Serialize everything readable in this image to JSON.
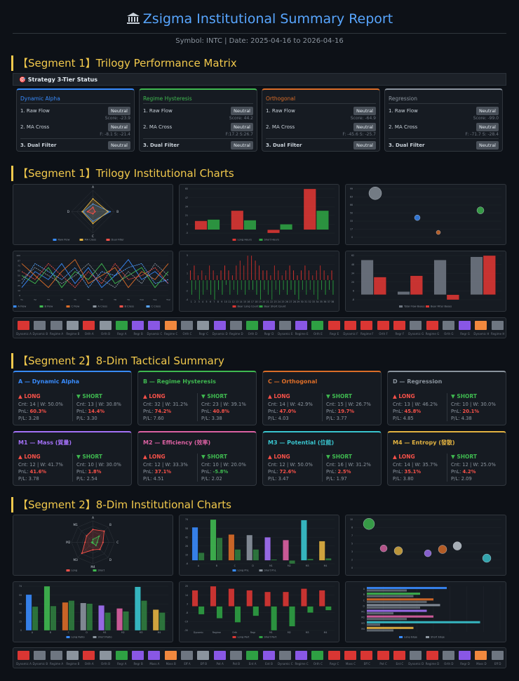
{
  "header": {
    "title": "Zsigma Institutional Summary Report",
    "subtitle": "Symbol: INTC | Date: 2025-04-16 to 2026-04-16"
  },
  "colors": {
    "dynamic": "#388bfd",
    "regime": "#3fb950",
    "orth": "#db6d28",
    "regr": "#8b949e",
    "m1": "#a371f7",
    "m2": "#db61a2",
    "m3": "#39c5cf",
    "m4": "#e3b341",
    "long": "#f85149",
    "short": "#3fb950",
    "accent": "#f2c94c"
  },
  "sections": {
    "s1": "【Segment 1】Trilogy Performance Matrix",
    "s2": "【Segment 1】Trilogy Institutional Charts",
    "s3": "【Segment 2】8-Dim Tactical Summary",
    "s4": "【Segment 2】8-Dim Institutional Charts"
  },
  "strategy_strip": "🎯 Strategy 3-Tier Status",
  "tiers": [
    {
      "name": "Dynamic Alpha",
      "r1": "1. Raw Flow",
      "b1": "Neutral",
      "s1": "Score: -23.9",
      "r2": "2. MA Cross",
      "b2": "Neutral",
      "s2": "F: -8.1 S: -21.4",
      "r3": "3. Dual Filter",
      "b3": "Neutral"
    },
    {
      "name": "Regime Hysteresis",
      "r1": "1. Raw Flow",
      "b1": "Neutral",
      "s1": "Score: 44.2",
      "r2": "2. MA Cross",
      "b2": "Neutral",
      "s2": "F:17.2 S:26.7",
      "r3": "3. Dual Filter",
      "b3": "Neutral"
    },
    {
      "name": "Orthogonal",
      "r1": "1. Raw Flow",
      "b1": "Neutral",
      "s1": "Score: -64.9",
      "r2": "2. MA Cross",
      "b2": "Neutral",
      "s2": "F: -45.6 S: -25.7",
      "r3": "3. Dual Filter",
      "b3": "Neutral"
    },
    {
      "name": "Regression",
      "r1": "1. Raw Flow",
      "b1": "Neutral",
      "s1": "Score: -99.0",
      "r2": "2. MA Cross",
      "b2": "Neutral",
      "s2": "F: -71.7 S: -28.4",
      "r3": "3. Dual Filter",
      "b3": "Neutral"
    }
  ],
  "dims": [
    {
      "name": "A — Dynamic Alpha",
      "lh": "▲ LONG",
      "l1": "Cnt: 14 | W: 50.0%",
      "lp": "PnL: ",
      "lv": "60.3%",
      "lr": "P/L: 3.28",
      "sh": "▼ SHORT",
      "s1": "Cnt: 13 | W: 30.8%",
      "sp": "PnL: ",
      "sv": "14.4%",
      "sr": "P/L: 3.30"
    },
    {
      "name": "B — Regime Hysteresis",
      "lh": "▲ LONG",
      "l1": "Cnt: 32 | W: 31.2%",
      "lp": "PnL: ",
      "lv": "74.2%",
      "lr": "P/L: 7.60",
      "sh": "▼ SHORT",
      "s1": "Cnt: 23 | W: 39.1%",
      "sp": "PnL: ",
      "sv": "40.8%",
      "sr": "P/L: 3.38"
    },
    {
      "name": "C — Orthogonal",
      "lh": "▲ LONG",
      "l1": "Cnt: 14 | W: 42.9%",
      "lp": "PnL: ",
      "lv": "47.0%",
      "lr": "P/L: 4.03",
      "sh": "▼ SHORT",
      "s1": "Cnt: 15 | W: 26.7%",
      "sp": "PnL: ",
      "sv": "19.7%",
      "sr": "P/L: 3.77"
    },
    {
      "name": "D — Regression",
      "lh": "▲ LONG",
      "l1": "Cnt: 13 | W: 46.2%",
      "lp": "PnL: ",
      "lv": "45.8%",
      "lr": "P/L: 4.85",
      "sh": "▼ SHORT",
      "s1": "Cnt: 10 | W: 30.0%",
      "sp": "PnL: ",
      "sv": "20.1%",
      "sr": "P/L: 4.38"
    },
    {
      "name": "M1 — Mass (質量)",
      "lh": "▲ LONG",
      "l1": "Cnt: 12 | W: 41.7%",
      "lp": "PnL: ",
      "lv": "41.6%",
      "lr": "P/L: 3.78",
      "sh": "▼ SHORT",
      "s1": "Cnt: 10 | W: 30.0%",
      "sp": "PnL: ",
      "sv": "1.8%",
      "sr": "P/L: 2.54"
    },
    {
      "name": "M2 — Efficiency (效率)",
      "lh": "▲ LONG",
      "l1": "Cnt: 12 | W: 33.3%",
      "lp": "PnL: ",
      "lv": "37.1%",
      "lr": "P/L: 4.51",
      "sh": "▼ SHORT",
      "s1": "Cnt: 10 | W: 20.0%",
      "sp": "PnL: ",
      "sv": "-5.8%",
      "sr": "P/L: 2.02"
    },
    {
      "name": "M3 — Potential (位能)",
      "lh": "▲ LONG",
      "l1": "Cnt: 12 | W: 50.0%",
      "lp": "PnL: ",
      "lv": "72.6%",
      "lr": "P/L: 3.47",
      "sh": "▼ SHORT",
      "s1": "Cnt: 16 | W: 31.2%",
      "sp": "PnL: ",
      "sv": "2.5%",
      "sr": "P/L: 1.97"
    },
    {
      "name": "M4 — Entropy (發散)",
      "lh": "▲ LONG",
      "l1": "Cnt: 14 | W: 35.7%",
      "lp": "PnL: ",
      "lv": "35.1%",
      "lr": "P/L: 3.80",
      "sh": "▼ SHORT",
      "s1": "Cnt: 12 | W: 25.0%",
      "sp": "PnL: ",
      "sv": "4.2%",
      "sr": "P/L: 2.09"
    }
  ],
  "chart_data": [
    {
      "type": "radar",
      "axes": [
        "A",
        "B",
        "C",
        "D"
      ],
      "series": [
        {
          "name": "Raw Flow",
          "values": [
            36,
            80,
            45,
            45
          ]
        },
        {
          "name": "MA Cross",
          "values": [
            60,
            70,
            55,
            50
          ]
        },
        {
          "name": "Dual Filter",
          "values": [
            20,
            10,
            10,
            25
          ]
        }
      ],
      "legend": [
        "Raw Flow",
        "MA Cross",
        "Dual Filter"
      ]
    },
    {
      "type": "bar",
      "categories": [
        "A",
        "B",
        "C",
        "D"
      ],
      "series": [
        {
          "name": "Long Hours",
          "values": [
            13,
            28,
            -5,
            60
          ]
        },
        {
          "name": "Short Hours",
          "values": [
            15,
            14,
            8,
            28
          ]
        }
      ],
      "legend": [
        "Long Hours",
        "Short Hours"
      ]
    },
    {
      "type": "scatter",
      "points": [
        {
          "x": 1,
          "y": 90,
          "r": 9
        },
        {
          "x": 3,
          "y": 40,
          "r": 4
        },
        {
          "x": 4,
          "y": 10,
          "r": 3
        },
        {
          "x": 6,
          "y": 55,
          "r": 5
        }
      ]
    },
    {
      "type": "line",
      "series": [
        {
          "name": "A Flow",
          "values": [
            20,
            60,
            40,
            80,
            30,
            70,
            20,
            50,
            90,
            40,
            60,
            30
          ]
        },
        {
          "name": "B Flow",
          "values": [
            50,
            30,
            70,
            20,
            60,
            40,
            80,
            30,
            50,
            70,
            20,
            60
          ]
        },
        {
          "name": "C Flow",
          "values": [
            80,
            50,
            20,
            60,
            90,
            30,
            50,
            70,
            20,
            60,
            40,
            80
          ]
        },
        {
          "name": "A Cross",
          "values": [
            40,
            70,
            50,
            30,
            50,
            80,
            40,
            20,
            60,
            30,
            80,
            50
          ]
        },
        {
          "name": "B Cross",
          "values": [
            60,
            40,
            80,
            50,
            20,
            60,
            30,
            80,
            40,
            50,
            70,
            30
          ]
        },
        {
          "name": "C Cross",
          "values": [
            30,
            80,
            60,
            40,
            70,
            20,
            60,
            50,
            70,
            80,
            30,
            40
          ]
        }
      ],
      "legend": [
        "A Flow",
        "B Flow",
        "C Flow",
        "A Cross",
        "B Cross",
        "C Cross"
      ]
    },
    {
      "type": "bar",
      "categories": [
        "1",
        "2",
        "3",
        "4",
        "5",
        "6",
        "7",
        "8",
        "9",
        "10",
        "11",
        "12",
        "13",
        "14",
        "15",
        "16",
        "17",
        "18",
        "19",
        "20",
        "21",
        "22",
        "23",
        "24",
        "25",
        "26",
        "27",
        "28",
        "29",
        "30",
        "31",
        "32",
        "33",
        "34",
        "35",
        "36",
        "37",
        "38"
      ],
      "series": [
        {
          "name": "Bear Long Count",
          "values": [
            2,
            3,
            1,
            2,
            1,
            3,
            2,
            1,
            2,
            3,
            2,
            1,
            3,
            4,
            3,
            5,
            5,
            4,
            3,
            2,
            2,
            1,
            3,
            2,
            1,
            2,
            3,
            2,
            1,
            2,
            3,
            2,
            1,
            2,
            3,
            2,
            1,
            2
          ]
        },
        {
          "name": "Bear Short Count",
          "values": [
            -3,
            -2,
            -4,
            -3,
            -2,
            -3,
            -4,
            -2,
            -3,
            -1,
            -3,
            -2,
            -3,
            -2,
            -3,
            -2,
            -2,
            -3,
            -4,
            -2,
            -3,
            -4,
            -2,
            -3,
            -2,
            -3,
            -2,
            -3,
            -4,
            -2,
            -3,
            -2,
            -3,
            -4,
            -2,
            -3,
            -2,
            -3
          ]
        }
      ],
      "legend": [
        "Bear Long Count",
        "Bear Short Count"
      ]
    },
    {
      "type": "bar",
      "categories": [
        "A",
        "B",
        "C",
        "D"
      ],
      "series": [
        {
          "name": "Total Flow Bases",
          "values": [
            55,
            5,
            55,
            60
          ]
        },
        {
          "name": "Bear Filter Bases",
          "values": [
            28,
            30,
            -8,
            62
          ]
        }
      ],
      "legend": [
        "Total Flow Bases",
        "Bear Filter Bases"
      ]
    },
    {
      "type": "radar",
      "axes": [
        "A",
        "B",
        "C",
        "D",
        "M4",
        "M3",
        "M2",
        "M1"
      ],
      "series": [
        {
          "name": "Long",
          "values": [
            60,
            74,
            47,
            46,
            35,
            73,
            37,
            42
          ]
        },
        {
          "name": "Short",
          "values": [
            14,
            41,
            20,
            20,
            4,
            3,
            6,
            2
          ]
        }
      ],
      "legend": [
        "Long",
        "Short"
      ]
    },
    {
      "type": "bar",
      "categories": [
        "A",
        "B",
        "C",
        "D",
        "M1",
        "M2",
        "M3",
        "M4"
      ],
      "series": [
        {
          "name": "Long PnL",
          "values": [
            60,
            74,
            47,
            46,
            42,
            37,
            73,
            35
          ]
        },
        {
          "name": "Short PnL",
          "values": [
            14,
            41,
            20,
            20,
            2,
            -6,
            3,
            4
          ]
        }
      ],
      "legend": [
        "Long PnL",
        "Short PnL"
      ]
    },
    {
      "type": "scatter",
      "points": [
        {
          "x": 1,
          "y": 9,
          "r": 8
        },
        {
          "x": 2,
          "y": 4,
          "r": 5
        },
        {
          "x": 3,
          "y": 3.5,
          "r": 6
        },
        {
          "x": 5,
          "y": 3,
          "r": 5
        },
        {
          "x": 6,
          "y": 3.8,
          "r": 6
        },
        {
          "x": 7,
          "y": 4.5,
          "r": 6
        },
        {
          "x": 9,
          "y": 2,
          "r": 6
        }
      ]
    },
    {
      "type": "bar",
      "categories": [
        "A",
        "B",
        "C",
        "D",
        "M1",
        "M2",
        "M3",
        "M4"
      ],
      "series": [
        {
          "name": "Long Ratio",
          "values": [
            60,
            74,
            47,
            46,
            42,
            37,
            73,
            35
          ]
        },
        {
          "name": "Short Ratio",
          "values": [
            40,
            41,
            50,
            45,
            30,
            32,
            50,
            30
          ]
        }
      ],
      "legend": [
        "Long Ratio",
        "Short Ratio"
      ]
    },
    {
      "type": "bar",
      "categories": [
        "Dynamic",
        "Regime",
        "Orth",
        "Regr",
        "M1",
        "M2",
        "M3",
        "M4"
      ],
      "series": [
        {
          "name": "Long Part",
          "values": [
            20,
            25,
            22,
            20,
            18,
            18,
            22,
            20
          ]
        },
        {
          "name": "Short Part",
          "values": [
            -10,
            -15,
            -20,
            -12,
            -30,
            -25,
            -8,
            -5
          ]
        }
      ],
      "legend": [
        "Long Part",
        "Short Part"
      ]
    },
    {
      "type": "bar_h",
      "categories": [
        "A",
        "B",
        "C",
        "D",
        "M1",
        "M2",
        "M3",
        "M4"
      ],
      "series": [
        {
          "name": "Long Edge",
          "values": [
            60,
            40,
            50,
            55,
            45,
            50,
            85,
            35
          ]
        },
        {
          "name": "Short Edge",
          "values": [
            30,
            35,
            45,
            40,
            20,
            30,
            10,
            20
          ]
        }
      ],
      "legend": [
        "Long Edge",
        "Short Edge"
      ]
    }
  ],
  "chips1": [
    "Dynamic A",
    "Dynamic B",
    "Regime A",
    "Regime B",
    "Orth A",
    "Orth B",
    "Regr A",
    "Regr B",
    "Dynamic C",
    "Regime C",
    "Orth C",
    "Regr C",
    "Dynamic D",
    "Regime D",
    "Orth D",
    "Regr D",
    "Dynamic E",
    "Regime E",
    "Orth E",
    "Regr E",
    "Dynamic F",
    "Regime F",
    "Orth F",
    "Regr F",
    "Dynamic G",
    "Regime G",
    "Orth G",
    "Regr G",
    "Dynamic H",
    "Regime H"
  ],
  "chips2": [
    "Dynamic A",
    "Dynamic B",
    "Regime A",
    "Regime B",
    "Orth A",
    "Orth B",
    "Regr A",
    "Regr B",
    "Mass A",
    "Mass B",
    "Eff A",
    "Eff B",
    "Pot A",
    "Pot B",
    "Ent A",
    "Ent B",
    "Dynamic C",
    "Regime C",
    "Orth C",
    "Regr C",
    "Mass C",
    "Eff C",
    "Pot C",
    "Ent C",
    "Dynamic D",
    "Regime D",
    "Orth D",
    "Regr D",
    "Mass D",
    "Eff D"
  ]
}
